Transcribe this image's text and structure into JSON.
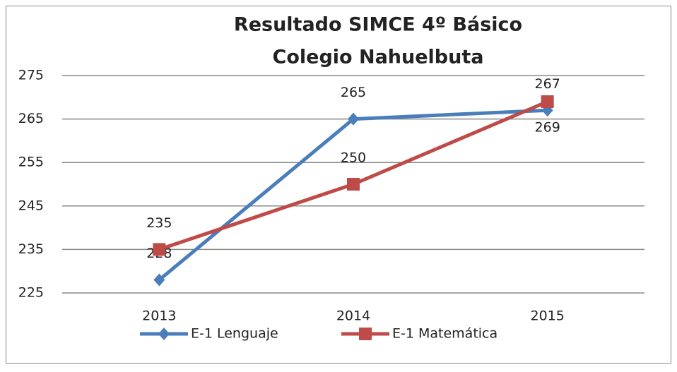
{
  "chart_data": {
    "type": "line",
    "title": [
      "Resultado SIMCE  4º Básico",
      "Colegio Nahuelbuta"
    ],
    "categories": [
      "2013",
      "2014",
      "2015"
    ],
    "series": [
      {
        "name": "E-1 Lenguaje",
        "color": "#4a7ebb",
        "marker": "diamond",
        "values": [
          228,
          265,
          267
        ]
      },
      {
        "name": "E-1 Matemática",
        "color": "#be4b48",
        "marker": "square",
        "values": [
          235,
          250,
          269
        ]
      }
    ],
    "ylim": [
      225,
      275
    ],
    "yticks": [
      225,
      235,
      245,
      255,
      265,
      275
    ],
    "grid": true,
    "legend": "bottom"
  }
}
